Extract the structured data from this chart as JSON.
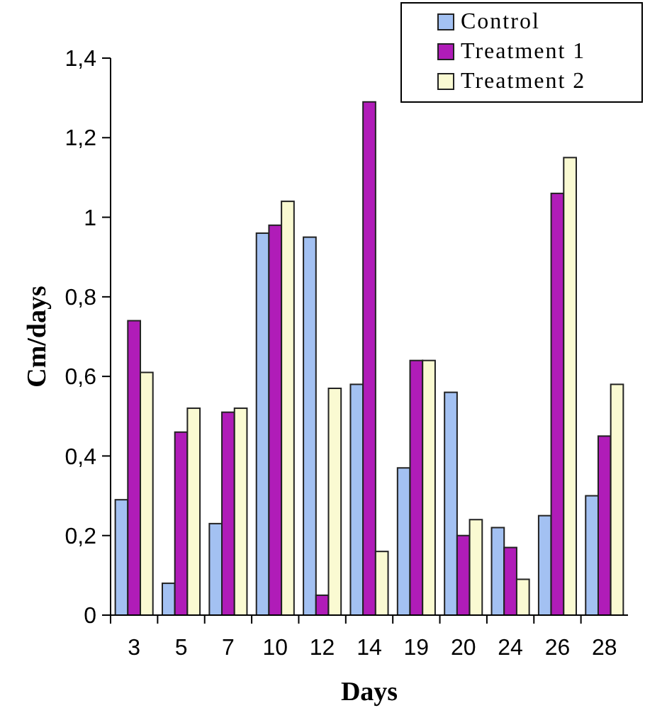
{
  "chart_data": {
    "type": "bar",
    "xlabel": "Days",
    "ylabel": "Cm/days",
    "categories": [
      "3",
      "5",
      "7",
      "10",
      "12",
      "14",
      "19",
      "20",
      "24",
      "26",
      "28"
    ],
    "series": [
      {
        "name": "Control",
        "color": "#a3c1f2",
        "values": [
          0.29,
          0.08,
          0.23,
          0.96,
          0.95,
          0.58,
          0.37,
          0.56,
          0.22,
          0.25,
          0.3
        ]
      },
      {
        "name": "Treatment 1",
        "color": "#b01cb8",
        "values": [
          0.74,
          0.46,
          0.51,
          0.98,
          0.05,
          1.29,
          0.64,
          0.2,
          0.17,
          1.06,
          0.45
        ]
      },
      {
        "name": "Treatment 2",
        "color": "#fafad2",
        "values": [
          0.61,
          0.52,
          0.52,
          1.04,
          0.57,
          0.16,
          0.64,
          0.24,
          0.09,
          1.15,
          0.58
        ]
      }
    ],
    "ylim": [
      0,
      1.4
    ],
    "yticks": [
      {
        "value": 0,
        "label": "0"
      },
      {
        "value": 0.2,
        "label": "0,2"
      },
      {
        "value": 0.4,
        "label": "0,4"
      },
      {
        "value": 0.6,
        "label": "0,6"
      },
      {
        "value": 0.8,
        "label": "0,8"
      },
      {
        "value": 1,
        "label": "1"
      },
      {
        "value": 1.2,
        "label": "1,2"
      },
      {
        "value": 1.4,
        "label": "1,4"
      }
    ],
    "legend": "top right",
    "grid": false
  }
}
